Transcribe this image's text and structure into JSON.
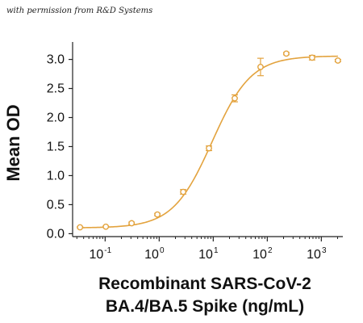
{
  "credit": "with permission from R&D Systems",
  "colors": {
    "series": "#E3A33E",
    "axis": "#222222",
    "text": "#111111"
  },
  "chart_data": {
    "type": "scatter",
    "title": "",
    "ylabel": "Mean OD",
    "xlabel_lines": [
      "Recombinant SARS-CoV-2",
      "BA.4/BA.5 Spike (ng/mL)"
    ],
    "xscale": "log",
    "xlim": [
      0.025,
      2500
    ],
    "ylim": [
      -0.05,
      3.3
    ],
    "yticks": [
      0.0,
      0.5,
      1.0,
      1.5,
      2.0,
      2.5,
      3.0
    ],
    "ytick_labels": [
      "0.0",
      "0.5",
      "1.0",
      "1.5",
      "2.0",
      "2.5",
      "3.0"
    ],
    "xtick_base": "10",
    "xtick_exponents": [
      "-1",
      "0",
      "1",
      "2",
      "3"
    ],
    "grid": false,
    "legend": "none",
    "series": [
      {
        "x": [
          0.0343,
          0.103,
          0.309,
          0.926,
          2.78,
          8.33,
          25,
          75,
          225,
          675,
          2025
        ],
        "y": [
          0.11,
          0.12,
          0.18,
          0.33,
          0.72,
          1.47,
          2.33,
          2.87,
          3.1,
          3.03,
          2.98
        ],
        "err": [
          0.01,
          0.01,
          0.02,
          0.02,
          0.04,
          0.04,
          0.06,
          0.15,
          0.02,
          0.04,
          0.02
        ]
      }
    ],
    "fit": {
      "type": "4PL",
      "bottom": 0.1,
      "top": 3.06,
      "ec50": 9.5,
      "hill": 1.2
    }
  }
}
